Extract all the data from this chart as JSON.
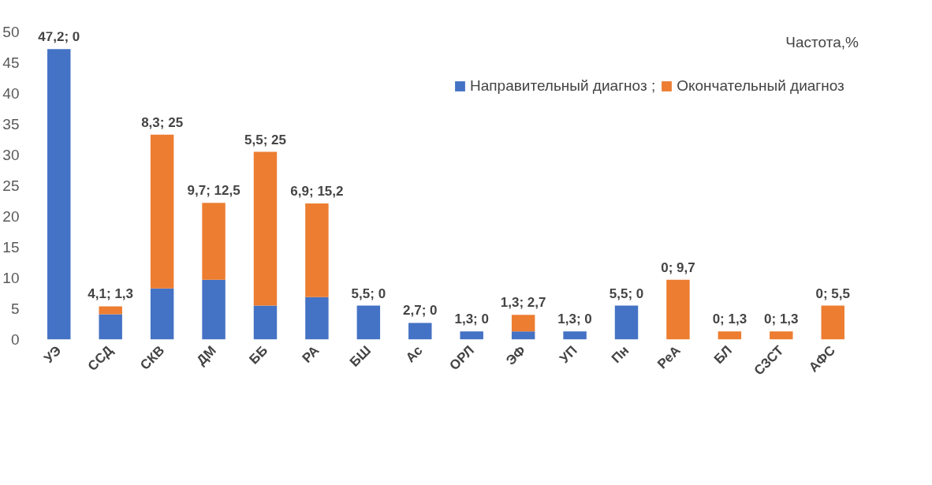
{
  "chart_data": {
    "type": "bar",
    "stacked": true,
    "categories": [
      "УЭ",
      "ССД",
      "СКВ",
      "ДМ",
      "ББ",
      "РА",
      "БШ",
      "Ас",
      "ОРЛ",
      "ЭФ",
      "УП",
      "Пн",
      "РеА",
      "БЛ",
      "СЗСТ",
      "АФС"
    ],
    "series": [
      {
        "name": "Направительный диагноз ;",
        "color": "#4472c4",
        "values": [
          47.2,
          4.1,
          8.3,
          9.7,
          5.5,
          6.9,
          5.5,
          2.7,
          1.3,
          1.3,
          1.3,
          5.5,
          0,
          0,
          0,
          0
        ]
      },
      {
        "name": "Окончательный диагноз",
        "color": "#ed7d31",
        "values": [
          0,
          1.3,
          25,
          12.5,
          25,
          15.2,
          0,
          0,
          0,
          2.7,
          0,
          0,
          9.7,
          1.3,
          1.3,
          5.5
        ]
      }
    ],
    "ylim": [
      0,
      50
    ],
    "yticks": [
      0,
      5,
      10,
      15,
      20,
      25,
      30,
      35,
      40,
      45,
      50
    ],
    "grid": false,
    "legend": "top right",
    "annotations": [
      "Частота,%",
      {
        "text": "47,2; 0",
        "x": "УЭ",
        "y": 47.2
      },
      {
        "text": "4,1; 1,3",
        "x": "ССД",
        "y": 5.4
      },
      {
        "text": "8,3; 25",
        "x": "СКВ",
        "y": 33.3
      },
      {
        "text": "9,7; 12,5",
        "x": "ДМ",
        "y": 22.2
      },
      {
        "text": "5,5; 25",
        "x": "ББ",
        "y": 30.5
      },
      {
        "text": "6,9; 15,2",
        "x": "РА",
        "y": 22.1
      },
      {
        "text": "5,5; 0",
        "x": "БШ",
        "y": 5.5
      },
      {
        "text": "2,7; 0",
        "x": "Ас",
        "y": 2.7
      },
      {
        "text": "1,3; 0",
        "x": "ОРЛ",
        "y": 1.3
      },
      {
        "text": "1,3; 2,7",
        "x": "ЭФ",
        "y": 4
      },
      {
        "text": "1,3; 0",
        "x": "УП",
        "y": 1.3
      },
      {
        "text": "5,5; 0",
        "x": "Пн",
        "y": 5.5
      },
      {
        "text": "0; 9,7",
        "x": "РеА",
        "y": 9.7
      },
      {
        "text": "0; 1,3",
        "x": "БЛ",
        "y": 1.3
      },
      {
        "text": "0; 1,3",
        "x": "СЗСТ",
        "y": 1.3
      },
      {
        "text": "0; 5,5",
        "x": "АФС",
        "y": 5.5
      }
    ]
  }
}
